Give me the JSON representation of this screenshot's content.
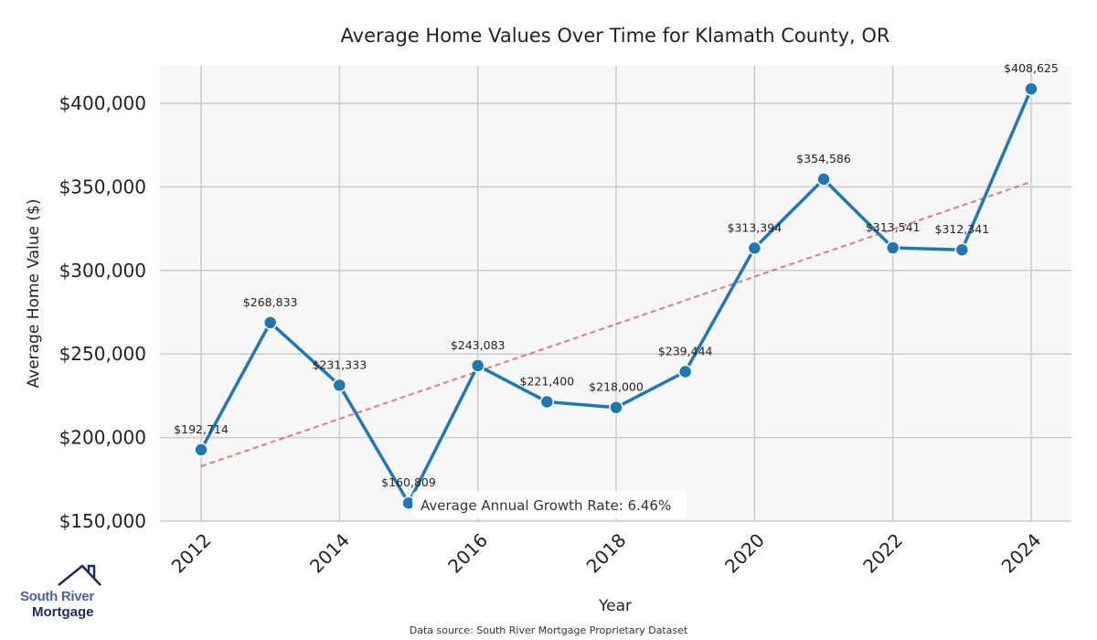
{
  "chart_data": {
    "type": "line",
    "title": "Average Home Values Over Time for Klamath County, OR",
    "xlabel": "Year",
    "ylabel": "Average Home Value ($)",
    "x": [
      2012,
      2013,
      2014,
      2015,
      2016,
      2017,
      2018,
      2019,
      2020,
      2021,
      2022,
      2023,
      2024
    ],
    "series": [
      {
        "name": "Average Home Value",
        "values": [
          192714,
          268833,
          231333,
          160809,
          243083,
          221400,
          218000,
          239444,
          313394,
          354586,
          313541,
          312341,
          408625
        ],
        "labels": [
          "$192,714",
          "$268,833",
          "$231,333",
          "$160,809",
          "$243,083",
          "$221,400",
          "$218,000",
          "$239,444",
          "$313,394",
          "$354,586",
          "$313,541",
          "$312,341",
          "$408,625"
        ],
        "color": "#1f77b4"
      }
    ],
    "trendline": {
      "x": [
        2012,
        2024
      ],
      "y": [
        182800,
        353000
      ],
      "color": "#d62728",
      "style": "dashed"
    },
    "xticks": [
      2012,
      2014,
      2016,
      2018,
      2020,
      2022,
      2024
    ],
    "xtick_labels": [
      "2012",
      "2014",
      "2016",
      "2018",
      "2020",
      "2022",
      "2024"
    ],
    "yticks": [
      150000,
      200000,
      250000,
      300000,
      350000,
      400000
    ],
    "ytick_labels": [
      "$150,000",
      "$200,000",
      "$250,000",
      "$300,000",
      "$350,000",
      "$400,000"
    ],
    "xlim": [
      2011.4,
      2024.6
    ],
    "ylim": [
      150000,
      421000
    ],
    "grid": true,
    "annotation": "Average Annual Growth Rate: 6.46%"
  },
  "footer": {
    "source": "Data source: South River Mortgage Proprietary Dataset"
  },
  "logo": {
    "line1": "South River",
    "line2": "Mortgage"
  }
}
